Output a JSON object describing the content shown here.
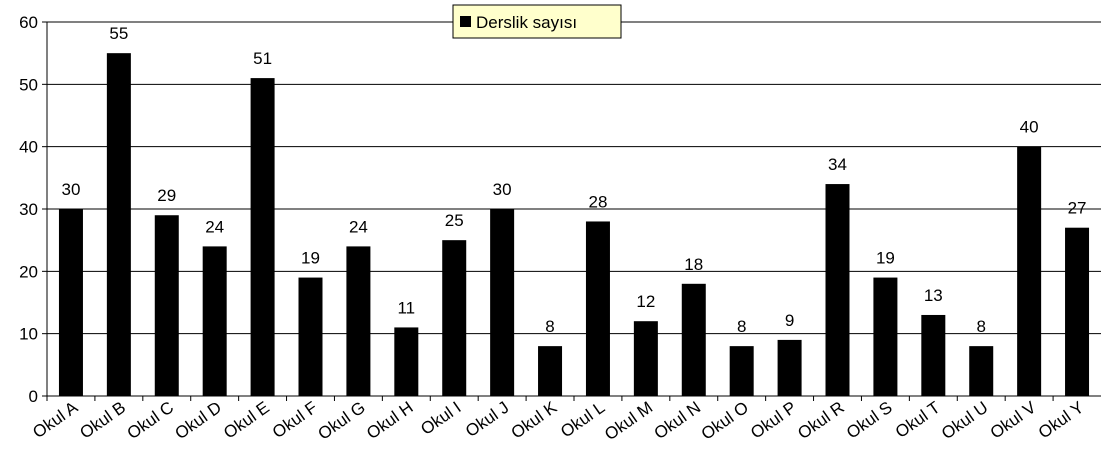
{
  "chart_data": {
    "type": "bar",
    "categories": [
      "Okul A",
      "Okul B",
      "Okul C",
      "Okul D",
      "Okul E",
      "Okul F",
      "Okul G",
      "Okul H",
      "Okul I",
      "Okul J",
      "Okul K",
      "Okul L",
      "Okul M",
      "Okul N",
      "Okul O",
      "Okul P",
      "Okul R",
      "Okul S",
      "Okul T",
      "Okul U",
      "Okul V",
      "Okul Y"
    ],
    "series": [
      {
        "name": "Derslik sayısı",
        "color": "#000000",
        "values": [
          30,
          55,
          29,
          24,
          51,
          19,
          24,
          11,
          25,
          30,
          8,
          28,
          12,
          18,
          8,
          9,
          34,
          19,
          13,
          8,
          40,
          27
        ]
      }
    ],
    "ylim": [
      0,
      60
    ],
    "yticks": [
      0,
      10,
      20,
      30,
      40,
      50,
      60
    ],
    "grid": true,
    "legend": "top",
    "legend_background": "#ffffcc"
  }
}
